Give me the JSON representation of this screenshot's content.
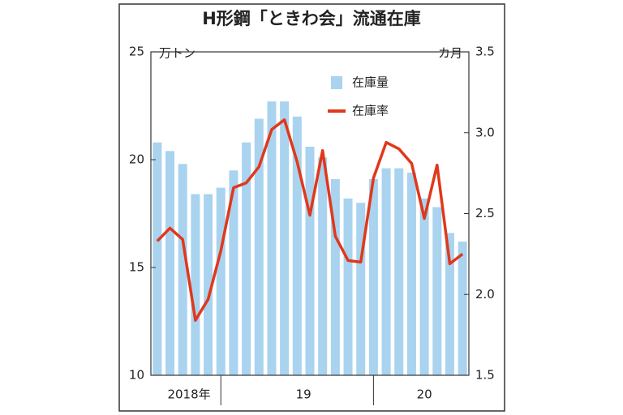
{
  "chart_data": {
    "type": "bar_line",
    "title": "H形鋼「ときわ会」流通在庫",
    "y_unit": "万トン",
    "y2_unit": "カ月",
    "categories": [
      null,
      null,
      null,
      null,
      null,
      null,
      null,
      null,
      null,
      null,
      null,
      null,
      null,
      null,
      null,
      null,
      null,
      null,
      null,
      null,
      null,
      null,
      null,
      null,
      null
    ],
    "x_groups": [
      {
        "label": "2018年",
        "count": 6
      },
      {
        "label": "19",
        "count": 12
      },
      {
        "label": "20",
        "count": 7
      }
    ],
    "series": [
      {
        "name": "在庫量",
        "type": "bar",
        "axis": "y",
        "color": "#a9d3ef",
        "values": [
          20.8,
          20.4,
          19.8,
          18.4,
          18.4,
          18.7,
          19.5,
          20.8,
          21.9,
          22.7,
          22.7,
          22.0,
          20.6,
          20.1,
          19.1,
          18.2,
          18.0,
          19.1,
          19.6,
          19.6,
          19.4,
          18.2,
          17.8,
          16.6,
          16.2
        ]
      },
      {
        "name": "在庫率",
        "type": "line",
        "axis": "y2",
        "color": "#e0381c",
        "values": [
          2.33,
          2.41,
          2.34,
          1.84,
          1.97,
          2.27,
          2.66,
          2.69,
          2.79,
          3.02,
          3.08,
          2.82,
          2.49,
          2.89,
          2.36,
          2.21,
          2.2,
          2.72,
          2.94,
          2.9,
          2.81,
          2.47,
          2.8,
          2.19,
          2.25
        ]
      }
    ],
    "ylim": [
      10,
      25
    ],
    "yticks": [
      10,
      15,
      20,
      25
    ],
    "y2lim": [
      1.5,
      3.5
    ],
    "y2ticks": [
      1.5,
      {
        "value": 2,
        "label": "2.0"
      },
      2.5,
      {
        "value": 3,
        "label": "3.0"
      },
      3.5
    ],
    "legend": "upper right"
  }
}
